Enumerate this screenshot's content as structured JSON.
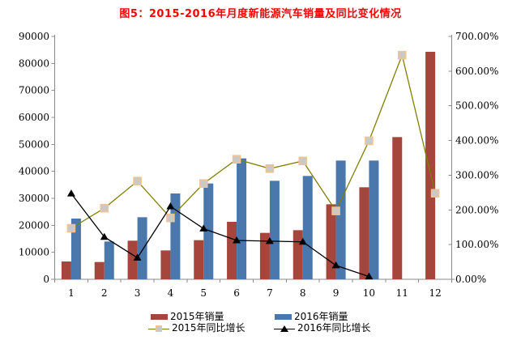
{
  "chart_data": {
    "type": "bar",
    "title": "图5：2015-2016年月度新能源汽车销量及同比变化情况",
    "categories": [
      "1",
      "2",
      "3",
      "4",
      "5",
      "6",
      "7",
      "8",
      "9",
      "10",
      "11",
      "12"
    ],
    "series": [
      {
        "name": "2015年销量",
        "type": "bar",
        "axis": "left",
        "color": "#A5453C",
        "values": [
          6600,
          6400,
          14300,
          10700,
          14500,
          21300,
          17200,
          18200,
          27800,
          34100,
          52700,
          84300
        ]
      },
      {
        "name": "2016年销量",
        "type": "bar",
        "axis": "left",
        "color": "#4A78AC",
        "values": [
          22500,
          14000,
          23000,
          31800,
          35500,
          44800,
          36500,
          38300,
          44000,
          44000,
          null,
          null
        ]
      },
      {
        "name": "2015年同比增长",
        "type": "line",
        "axis": "right",
        "color": "#7F7F00",
        "marker": "square",
        "values": [
          147,
          205,
          283,
          177,
          276,
          346,
          319,
          341,
          197,
          399,
          646,
          248
        ]
      },
      {
        "name": "2016年同比增长",
        "type": "line",
        "axis": "right",
        "color": "#000000",
        "marker": "triangle",
        "values": [
          247,
          122,
          62,
          210,
          146,
          112,
          110,
          108,
          40,
          8,
          null,
          null
        ]
      }
    ],
    "axes": {
      "left": {
        "min": 0,
        "max": 90000,
        "step": 10000,
        "ticks": [
          "0",
          "10000",
          "20000",
          "30000",
          "40000",
          "50000",
          "60000",
          "70000",
          "80000",
          "90000"
        ]
      },
      "right": {
        "min": 0,
        "max": 700,
        "step": 100,
        "ticks": [
          "0.00%",
          "100.00%",
          "200.00%",
          "300.00%",
          "400.00%",
          "500.00%",
          "600.00%",
          "700.00%"
        ]
      }
    },
    "legend_position": "bottom",
    "gridlines": false,
    "colors": {
      "title": "#FF0000",
      "axis_line": "#898989",
      "marker_square_fill": "#C9C9C9",
      "marker_square_border": "#F0C392"
    }
  }
}
